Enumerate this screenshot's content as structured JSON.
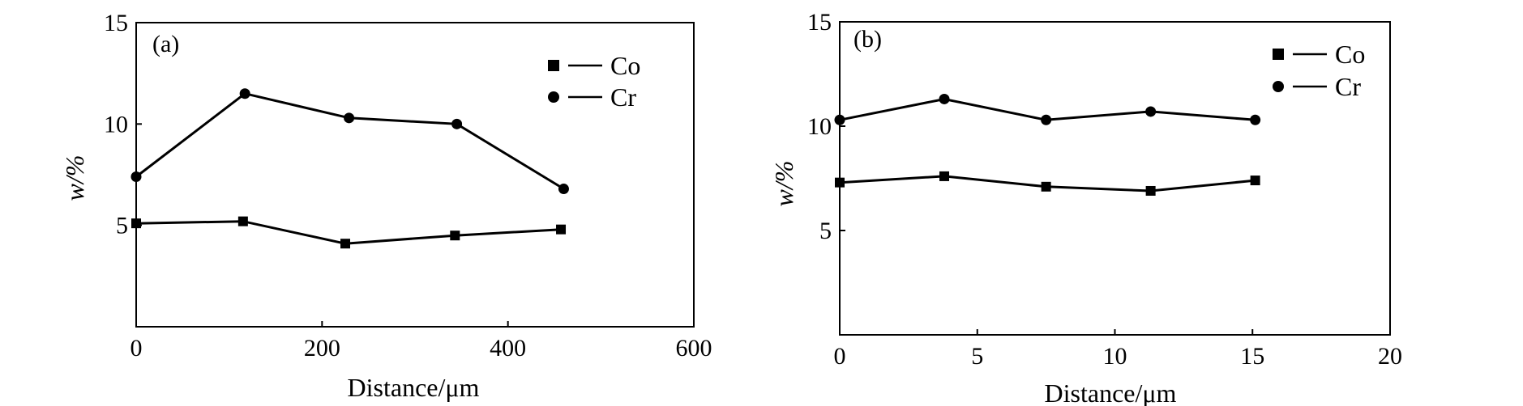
{
  "chart_data": [
    {
      "type": "line",
      "panel_label": "(a)",
      "xlabel": "Distance/μm",
      "ylabel": "w/%",
      "xlim": [
        0,
        600
      ],
      "ylim": [
        0,
        15
      ],
      "xticks": [
        0,
        200,
        400,
        600
      ],
      "xtick_labels": [
        "0",
        "200",
        "400",
        "600"
      ],
      "yticks": [
        5,
        10,
        15
      ],
      "ytick_labels": [
        "5",
        "10",
        "15"
      ],
      "grid": false,
      "legend_position": "top-right",
      "series": [
        {
          "name": "Co",
          "marker": "square",
          "x": [
            0,
            115,
            225,
            343,
            457
          ],
          "y": [
            5.1,
            5.2,
            4.1,
            4.5,
            4.8
          ]
        },
        {
          "name": "Cr",
          "marker": "circle",
          "x": [
            0,
            117,
            229,
            345,
            460
          ],
          "y": [
            7.4,
            11.5,
            10.3,
            10.0,
            6.8
          ]
        }
      ]
    },
    {
      "type": "line",
      "panel_label": "(b)",
      "xlabel": "Distance/μm",
      "ylabel": "w/%",
      "xlim": [
        0,
        20
      ],
      "ylim": [
        0,
        15
      ],
      "xticks": [
        0,
        5,
        10,
        15,
        20
      ],
      "xtick_labels": [
        "0",
        "5",
        "10",
        "15",
        "20"
      ],
      "yticks": [
        5,
        10,
        15
      ],
      "ytick_labels": [
        "5",
        "10",
        "15"
      ],
      "grid": false,
      "legend_position": "top-right",
      "series": [
        {
          "name": "Co",
          "marker": "square",
          "x": [
            0,
            3.8,
            7.5,
            11.3,
            15.1
          ],
          "y": [
            7.3,
            7.6,
            7.1,
            6.9,
            7.4
          ]
        },
        {
          "name": "Cr",
          "marker": "circle",
          "x": [
            0,
            3.8,
            7.5,
            11.3,
            15.1
          ],
          "y": [
            10.3,
            11.3,
            10.3,
            10.7,
            10.3
          ]
        }
      ]
    }
  ]
}
